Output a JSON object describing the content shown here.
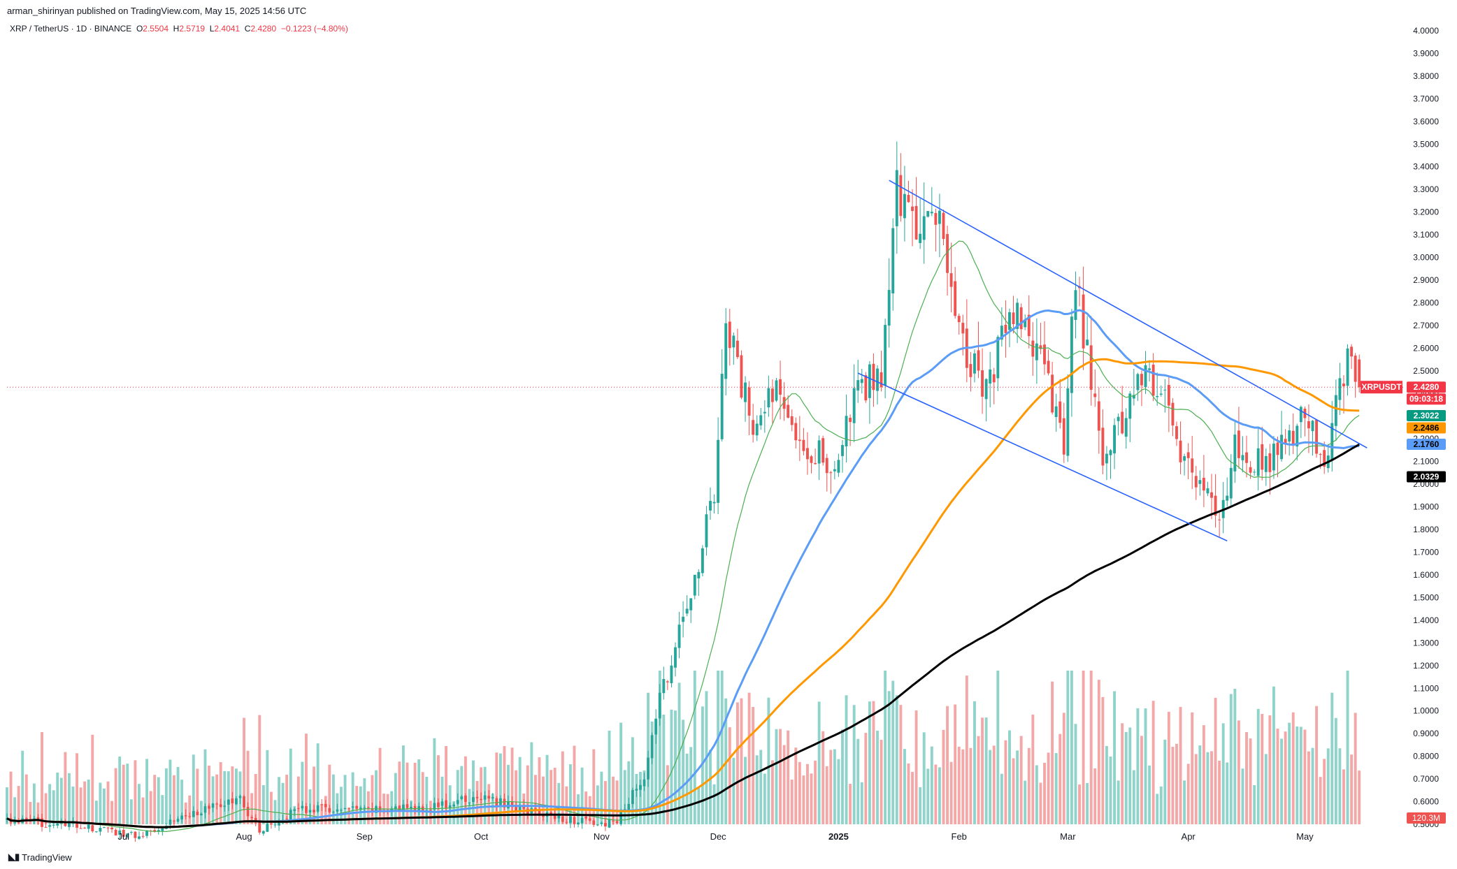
{
  "header": {
    "published": "arman_shirinyan published on TradingView.com, May 15, 2025 14:56 UTC",
    "symbol_name": "XRP / TetherUS · 1D · BINANCE",
    "open_label": "O",
    "open": "2.5504",
    "high_label": "H",
    "high": "2.5719",
    "low_label": "L",
    "low": "2.4041",
    "close_label": "C",
    "close": "2.4280",
    "change": "−0.1223 (−4.80%)"
  },
  "footer": {
    "brand": "TradingView",
    "logo_icon": "tradingview-logo-icon"
  },
  "colors": {
    "up": "#26a69a",
    "down": "#ef5350",
    "vol_up": "#8fd3cb",
    "vol_down": "#f4a7a7",
    "ma_fast": "#4caf50",
    "ma_mid": "#5b9cf6",
    "ma_slow": "#ff9800",
    "ma_long": "#000000",
    "channel": "#2962ff",
    "price_line": "#f23645"
  },
  "chart_data": {
    "type": "candlestick",
    "symbol": "XRPUSDT",
    "y_axis": {
      "min": 0.5,
      "max": 4.0,
      "ticks": [
        "4.0000",
        "3.9000",
        "3.8000",
        "3.7000",
        "3.6000",
        "3.5000",
        "3.4000",
        "3.3000",
        "3.2000",
        "3.1000",
        "3.0000",
        "2.9000",
        "2.8000",
        "2.7000",
        "2.6000",
        "2.5000",
        "2.4000",
        "2.3000",
        "2.2000",
        "2.1000",
        "2.0000",
        "1.9000",
        "1.8000",
        "1.7000",
        "1.6000",
        "1.5000",
        "1.4000",
        "1.3000",
        "1.2000",
        "1.1000",
        "1.0000",
        "0.9000",
        "0.8000",
        "0.7000",
        "0.6000",
        "0.5000"
      ]
    },
    "x_axis": {
      "range": [
        "2024-06-01",
        "2025-05-20"
      ],
      "labels": [
        {
          "date": "2024-07-01",
          "label": "Jul",
          "bold": false
        },
        {
          "date": "2024-08-01",
          "label": "Aug",
          "bold": false
        },
        {
          "date": "2024-09-01",
          "label": "Sep",
          "bold": false
        },
        {
          "date": "2024-10-01",
          "label": "Oct",
          "bold": false
        },
        {
          "date": "2024-11-01",
          "label": "Nov",
          "bold": false
        },
        {
          "date": "2024-12-01",
          "label": "Dec",
          "bold": false
        },
        {
          "date": "2025-01-01",
          "label": "2025",
          "bold": true
        },
        {
          "date": "2025-02-01",
          "label": "Feb",
          "bold": false
        },
        {
          "date": "2025-03-01",
          "label": "Mar",
          "bold": false
        },
        {
          "date": "2025-04-01",
          "label": "Apr",
          "bold": false
        },
        {
          "date": "2025-05-01",
          "label": "May",
          "bold": false
        }
      ]
    },
    "price_keypoints": [
      [
        "2024-06-01",
        0.52
      ],
      [
        "2024-06-20",
        0.49
      ],
      [
        "2024-07-05",
        0.45
      ],
      [
        "2024-07-15",
        0.53
      ],
      [
        "2024-07-31",
        0.61
      ],
      [
        "2024-08-05",
        0.47
      ],
      [
        "2024-08-15",
        0.57
      ],
      [
        "2024-09-01",
        0.56
      ],
      [
        "2024-09-20",
        0.58
      ],
      [
        "2024-10-01",
        0.62
      ],
      [
        "2024-10-15",
        0.55
      ],
      [
        "2024-10-31",
        0.5
      ],
      [
        "2024-11-05",
        0.51
      ],
      [
        "2024-11-12",
        0.72
      ],
      [
        "2024-11-16",
        1.05
      ],
      [
        "2024-11-23",
        1.45
      ],
      [
        "2024-11-30",
        1.95
      ],
      [
        "2024-12-03",
        2.7
      ],
      [
        "2024-12-10",
        2.25
      ],
      [
        "2024-12-17",
        2.45
      ],
      [
        "2024-12-22",
        2.2
      ],
      [
        "2024-12-31",
        2.08
      ],
      [
        "2025-01-06",
        2.4
      ],
      [
        "2025-01-12",
        2.5
      ],
      [
        "2025-01-16",
        3.28
      ],
      [
        "2025-01-22",
        3.15
      ],
      [
        "2025-01-27",
        3.12
      ],
      [
        "2025-02-03",
        2.6
      ],
      [
        "2025-02-08",
        2.4
      ],
      [
        "2025-02-14",
        2.75
      ],
      [
        "2025-02-21",
        2.6
      ],
      [
        "2025-02-28",
        2.15
      ],
      [
        "2025-03-03",
        2.9
      ],
      [
        "2025-03-10",
        2.1
      ],
      [
        "2025-03-19",
        2.45
      ],
      [
        "2025-03-25",
        2.45
      ],
      [
        "2025-03-31",
        2.1
      ],
      [
        "2025-04-07",
        1.92
      ],
      [
        "2025-04-09",
        1.82
      ],
      [
        "2025-04-13",
        2.15
      ],
      [
        "2025-04-22",
        2.09
      ],
      [
        "2025-04-30",
        2.27
      ],
      [
        "2025-05-07",
        2.12
      ],
      [
        "2025-05-09",
        2.33
      ],
      [
        "2025-05-12",
        2.57
      ],
      [
        "2025-05-15",
        2.428
      ]
    ],
    "last": {
      "open": 2.5504,
      "high": 2.5719,
      "low": 2.4041,
      "close": 2.428
    },
    "moving_averages": [
      {
        "period": 20,
        "color": "#4caf50",
        "last": "2.3022"
      },
      {
        "period": 50,
        "color": "#5b9cf6",
        "last": "2.1760"
      },
      {
        "period": 100,
        "color": "#ff9800",
        "last": "2.2486"
      },
      {
        "period": 200,
        "color": "#000000",
        "last": "2.0329"
      }
    ],
    "channel_upper": [
      [
        "2025-01-14",
        3.34
      ],
      [
        "2025-05-17",
        2.16
      ]
    ],
    "channel_lower": [
      [
        "2025-01-06",
        2.49
      ],
      [
        "2025-04-11",
        1.75
      ]
    ],
    "volume": {
      "last_label": "120.3M",
      "max": 1.6
    },
    "price_labels": [
      {
        "text": "XRPUSDT",
        "value": 2.428,
        "bg": "#f23645",
        "fg": "#ffffff"
      },
      {
        "text": "2.4280",
        "value": 2.428,
        "bg": "#f23645",
        "fg": "#ffffff"
      },
      {
        "text": "09:03:18",
        "value": 2.38,
        "bg": "#f23645",
        "fg": "#ffffff"
      },
      {
        "text": "2.3022",
        "value": 2.3022,
        "bg": "#089981",
        "fg": "#ffffff"
      },
      {
        "text": "2.2486",
        "value": 2.2486,
        "bg": "#ff9800",
        "fg": "#000000"
      },
      {
        "text": "2.1760",
        "value": 2.176,
        "bg": "#5b9cf6",
        "fg": "#000000"
      },
      {
        "text": "2.0329",
        "value": 2.0329,
        "bg": "#000000",
        "fg": "#ffffff"
      }
    ]
  }
}
